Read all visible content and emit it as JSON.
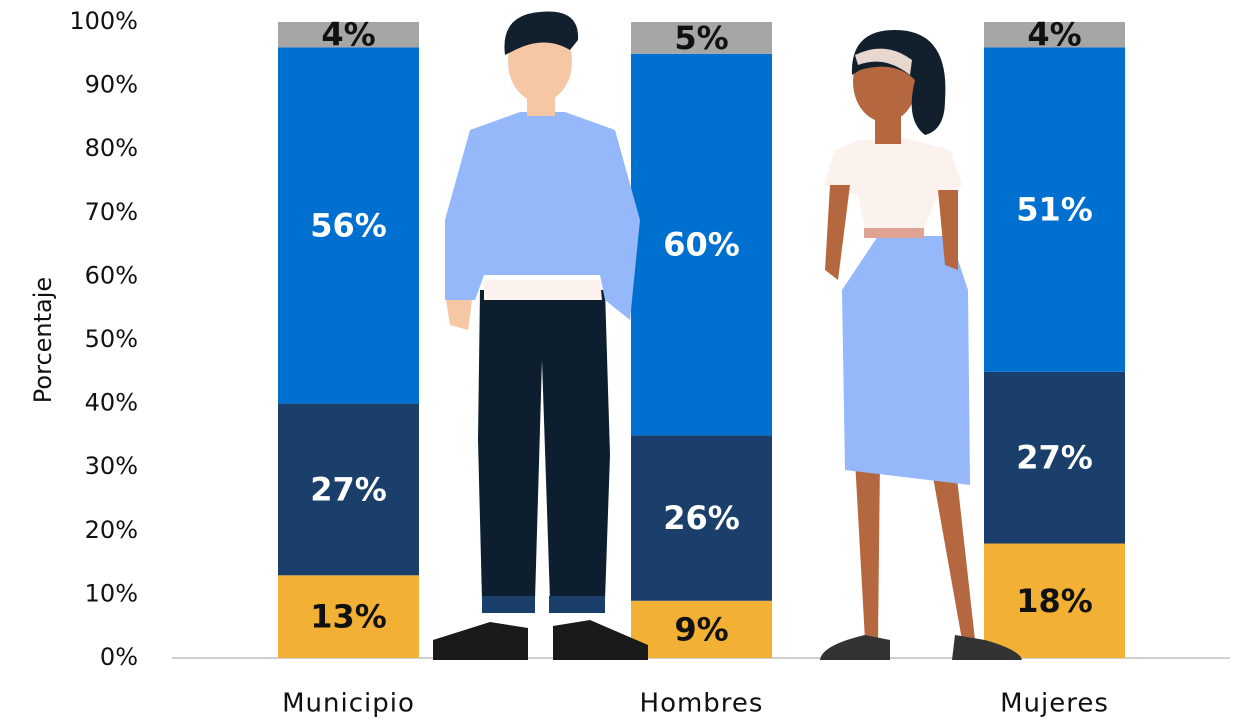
{
  "chart_data": {
    "type": "stacked_bar",
    "y_label": "Porcentaje",
    "categories": [
      "Municipio",
      "Hombres",
      "Mujeres"
    ],
    "series": [
      {
        "color": "#F2B134",
        "label_color": "#111111",
        "values": [
          13,
          9,
          18
        ],
        "value_labels": [
          "13%",
          "9%",
          "18%"
        ]
      },
      {
        "color": "#1B3F6B",
        "label_color": "#ffffff",
        "values": [
          27,
          26,
          27
        ],
        "value_labels": [
          "27%",
          "26%",
          "27%"
        ]
      },
      {
        "color": "#0070D0",
        "label_color": "#ffffff",
        "values": [
          56,
          60,
          51
        ],
        "value_labels": [
          "56%",
          "60%",
          "51%"
        ]
      },
      {
        "color": "#A6A6A6",
        "label_color": "#111111",
        "values": [
          4,
          5,
          4
        ],
        "value_labels": [
          "4%",
          "5%",
          "4%"
        ]
      }
    ],
    "ylim": [
      0,
      100
    ],
    "yticks": [
      {
        "value": 0,
        "label": "0%"
      },
      {
        "value": 10,
        "label": "10%"
      },
      {
        "value": 20,
        "label": "20%"
      },
      {
        "value": 30,
        "label": "30%"
      },
      {
        "value": 40,
        "label": "40%"
      },
      {
        "value": 50,
        "label": "50%"
      },
      {
        "value": 60,
        "label": "60%"
      },
      {
        "value": 70,
        "label": "70%"
      },
      {
        "value": 80,
        "label": "80%"
      },
      {
        "value": 90,
        "label": "90%"
      },
      {
        "value": 100,
        "label": "100%"
      }
    ],
    "grid": false
  }
}
